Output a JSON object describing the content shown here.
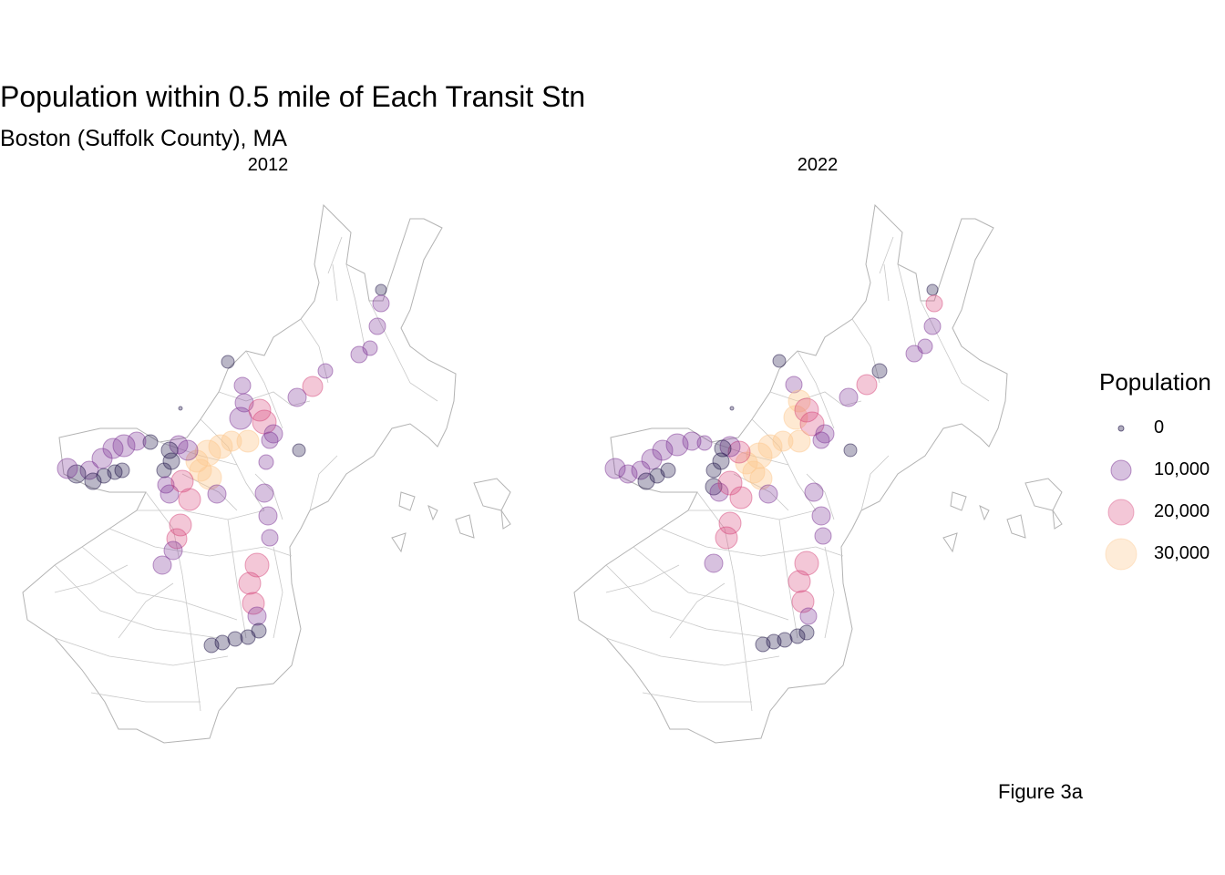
{
  "title": "Population within 0.5 mile of Each Transit Stn",
  "subtitle": "Boston (Suffolk County), MA",
  "caption": "Figure 3a",
  "facets": [
    {
      "label": "2012"
    },
    {
      "label": "2022"
    }
  ],
  "legend": {
    "title": "Population",
    "entries": [
      {
        "label": "0",
        "color": "#1c1044"
      },
      {
        "label": "10,000",
        "color": "#7b3294"
      },
      {
        "label": "20,000",
        "color": "#d6457a"
      },
      {
        "label": "30,000",
        "color": "#fdc88e"
      }
    ]
  },
  "colors": {
    "outline": "#b3b3b3",
    "low": "#1c1044",
    "mid": "#7b3294",
    "high": "#d6457a",
    "top": "#fdc88e"
  }
}
